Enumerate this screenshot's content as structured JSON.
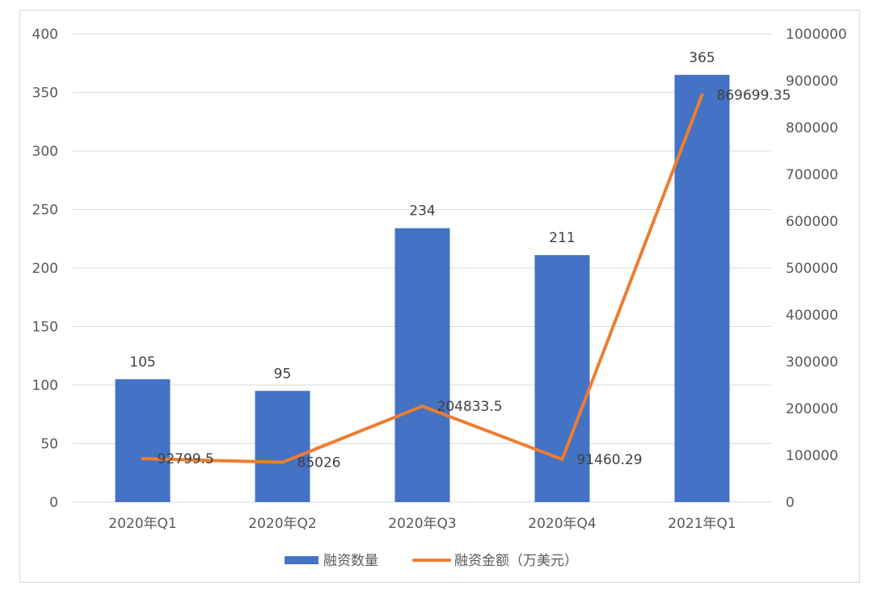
{
  "chart_data": {
    "type": "bar",
    "categories": [
      "2020年Q1",
      "2020年Q2",
      "2020年Q3",
      "2020年Q4",
      "2021年Q1"
    ],
    "series": [
      {
        "name": "融资数量",
        "type": "bar",
        "axis": "left",
        "color": "#4472C4",
        "values": [
          105,
          95,
          234,
          211,
          365
        ],
        "labels": [
          "105",
          "95",
          "234",
          "211",
          "365"
        ]
      },
      {
        "name": "融资金额（万美元）",
        "type": "line",
        "axis": "right",
        "color": "#ED7D31",
        "values": [
          92799.5,
          85026,
          204833.5,
          91460.29,
          869699.35
        ],
        "labels": [
          "92799.5",
          "85026",
          "204833.5",
          "91460.29",
          "869699.35"
        ]
      }
    ],
    "y_left": {
      "min": 0,
      "max": 400,
      "ticks": [
        "0",
        "50",
        "100",
        "150",
        "200",
        "250",
        "300",
        "350",
        "400"
      ]
    },
    "y_right": {
      "min": 0,
      "max": 1000000,
      "ticks": [
        "0",
        "100000",
        "200000",
        "300000",
        "400000",
        "500000",
        "600000",
        "700000",
        "800000",
        "900000",
        "1000000"
      ]
    },
    "grid": true,
    "legend_position": "bottom"
  }
}
